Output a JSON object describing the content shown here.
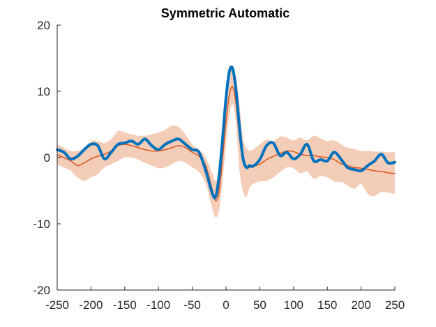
{
  "chart_data": {
    "type": "line",
    "title": "Symmetric Automatic",
    "xlabel": "",
    "ylabel": "",
    "xlim": [
      -250,
      250
    ],
    "ylim": [
      -20,
      20
    ],
    "x_ticks": [
      -250,
      -200,
      -150,
      -100,
      -50,
      0,
      50,
      100,
      150,
      200,
      250
    ],
    "y_ticks": [
      -20,
      -10,
      0,
      10,
      20
    ],
    "x_tick_labels": [
      "-250",
      "-200",
      "-150",
      "-100",
      "-50",
      "0",
      "50",
      "100",
      "150",
      "200",
      "250"
    ],
    "y_tick_labels": [
      "-20",
      "-10",
      "0",
      "10",
      "20"
    ],
    "grid": false,
    "legend": "none",
    "x": [
      -250,
      -240,
      -230,
      -220,
      -210,
      -200,
      -190,
      -180,
      -170,
      -160,
      -150,
      -140,
      -130,
      -120,
      -110,
      -100,
      -90,
      -80,
      -70,
      -60,
      -50,
      -40,
      -30,
      -20,
      -15,
      -10,
      -5,
      0,
      5,
      10,
      15,
      20,
      25,
      30,
      35,
      40,
      50,
      60,
      70,
      80,
      90,
      100,
      110,
      120,
      130,
      140,
      150,
      160,
      170,
      180,
      190,
      200,
      210,
      220,
      230,
      240,
      250
    ],
    "series": [
      {
        "values": [
          1.2,
          0.8,
          -0.2,
          0.2,
          1.2,
          2.0,
          1.8,
          -0.2,
          0.8,
          2.0,
          2.2,
          2.5,
          2.0,
          2.8,
          1.8,
          1.2,
          2.0,
          2.5,
          2.8,
          2.0,
          1.2,
          0.8,
          -2.0,
          -5.5,
          -5.8,
          -2.5,
          3.0,
          9.0,
          13.0,
          13.4,
          10.0,
          4.5,
          0.0,
          -1.5,
          -1.2,
          -1.3,
          -0.3,
          1.8,
          2.2,
          0.3,
          0.8,
          -0.2,
          0.5,
          2.0,
          -0.5,
          -0.3,
          -0.5,
          0.8,
          -0.2,
          -1.5,
          -1.8,
          -2.0,
          -1.2,
          -0.5,
          0.5,
          -0.8,
          -0.7
        ],
        "color": "#0072BD"
      },
      {
        "values": [
          0.4,
          0.0,
          -0.5,
          -1.2,
          -0.8,
          -0.2,
          0.2,
          0.5,
          1.0,
          1.8,
          2.0,
          1.8,
          1.5,
          1.2,
          1.0,
          1.0,
          1.2,
          1.5,
          1.8,
          1.5,
          0.8,
          0.2,
          -1.2,
          -5.0,
          -6.5,
          -5.0,
          0.0,
          5.5,
          9.5,
          10.6,
          8.0,
          3.0,
          -0.5,
          -1.4,
          -1.5,
          -1.3,
          -1.0,
          -0.3,
          0.2,
          0.6,
          1.0,
          0.9,
          0.5,
          0.3,
          0.3,
          0.1,
          0.0,
          -0.3,
          -0.9,
          -1.2,
          -1.5,
          -1.6,
          -1.8,
          -2.0,
          -2.1,
          -2.3,
          -2.4
        ],
        "color": "#D95319"
      }
    ],
    "band": {
      "upper": [
        2.0,
        1.5,
        1.0,
        1.0,
        1.5,
        2.5,
        2.5,
        2.2,
        2.8,
        4.0,
        3.8,
        3.5,
        3.3,
        3.3,
        3.5,
        3.8,
        4.2,
        4.8,
        4.6,
        3.5,
        2.0,
        1.2,
        0.0,
        -2.5,
        -3.5,
        -2.0,
        3.0,
        8.5,
        12.5,
        13.6,
        12.0,
        8.0,
        3.0,
        1.5,
        1.0,
        1.2,
        2.0,
        2.7,
        2.5,
        3.2,
        3.0,
        2.6,
        3.0,
        2.6,
        3.3,
        2.9,
        2.5,
        2.6,
        2.0,
        1.5,
        1.3,
        1.0,
        1.0,
        0.9,
        0.9,
        0.8,
        0.8
      ],
      "lower": [
        -1.0,
        -1.5,
        -2.0,
        -3.0,
        -3.5,
        -3.0,
        -2.5,
        -1.5,
        -1.0,
        -0.5,
        0.0,
        0.0,
        -0.3,
        -0.8,
        -1.2,
        -1.6,
        -1.5,
        -1.0,
        -0.5,
        -0.8,
        -1.5,
        -2.2,
        -4.0,
        -7.8,
        -9.0,
        -7.8,
        -3.5,
        2.0,
        6.5,
        8.0,
        5.0,
        -2.0,
        -5.0,
        -6.0,
        -4.5,
        -4.0,
        -3.6,
        -3.5,
        -3.0,
        -2.2,
        -1.5,
        -1.6,
        -2.4,
        -2.1,
        -3.2,
        -2.8,
        -3.0,
        -3.6,
        -3.7,
        -4.2,
        -4.7,
        -4.0,
        -5.5,
        -5.8,
        -5.2,
        -5.3,
        -5.5
      ],
      "color": "#F4CDB8"
    }
  }
}
